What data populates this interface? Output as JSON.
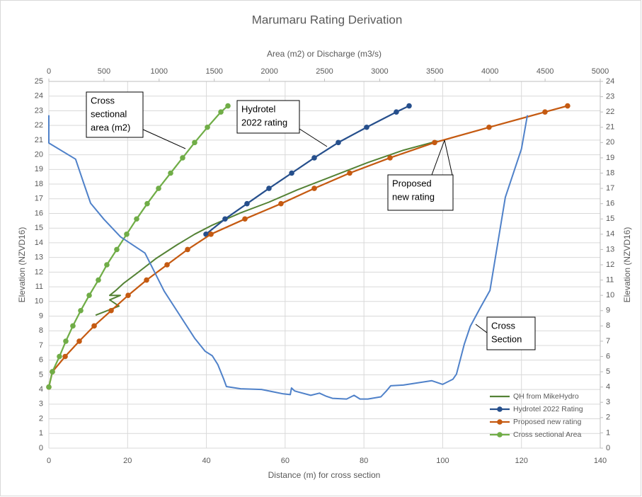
{
  "chart_data": {
    "type": "line",
    "title": "Marumaru Rating Derivation",
    "x_label": "Distance (m) for cross section",
    "x2_label": "Area (m2) or Discharge (m3/s)",
    "y_label": "Elevation (NZVD16)",
    "y2_label": "Elevation (NZVD16)",
    "xlim": [
      0,
      140
    ],
    "xticks": [
      0,
      20,
      40,
      60,
      80,
      100,
      120,
      140
    ],
    "x2lim": [
      0,
      5000
    ],
    "x2ticks": [
      0,
      500,
      1000,
      1500,
      2000,
      2500,
      3000,
      3500,
      4000,
      4500,
      5000
    ],
    "ylim": [
      0,
      25
    ],
    "yticks": [
      0,
      1,
      2,
      3,
      4,
      5,
      6,
      7,
      8,
      9,
      10,
      11,
      12,
      13,
      14,
      15,
      16,
      17,
      18,
      19,
      20,
      21,
      22,
      23,
      24,
      25
    ],
    "y2lim": [
      0,
      24
    ],
    "y2ticks": [
      0,
      1,
      2,
      3,
      4,
      5,
      6,
      7,
      8,
      9,
      10,
      11,
      12,
      13,
      14,
      15,
      16,
      17,
      18,
      19,
      20,
      21,
      22,
      23,
      24
    ],
    "grid": true,
    "legend": "lower right",
    "series": [
      {
        "name": "QH from MikeHydro",
        "color": "#548235",
        "axis": "y2",
        "xaxis": "x2",
        "markers": false,
        "x": [
          424,
          636,
          552,
          648,
          552,
          604,
          680,
          809,
          969,
          1162,
          1322,
          1483,
          1740,
          1996,
          2253,
          2574,
          2895,
          3216,
          3524
        ],
        "values": [
          8.7,
          9.3,
          9.7,
          10.0,
          10.0,
          10.3,
          10.8,
          11.5,
          12.4,
          13.3,
          14.0,
          14.6,
          15.4,
          16.1,
          16.9,
          17.8,
          18.7,
          19.5,
          20.1
        ]
      },
      {
        "name": "Hydrotel 2022 Rating",
        "color": "#264f8c",
        "axis": "y2",
        "xaxis": "x2",
        "markers": true,
        "x": [
          1425,
          1598,
          1797,
          1996,
          2202,
          2407,
          2625,
          2882,
          3151,
          3267
        ],
        "values": [
          14,
          15,
          16,
          17,
          18,
          19,
          20,
          21,
          22,
          22.4
        ]
      },
      {
        "name": "Proposed new rating",
        "color": "#c55a11",
        "axis": "y2",
        "xaxis": "x2",
        "markers": true,
        "x": [
          0,
          32,
          148,
          276,
          411,
          565,
          719,
          886,
          1072,
          1258,
          1470,
          1778,
          2105,
          2407,
          2728,
          3094,
          3498,
          3992,
          4499,
          4704
        ],
        "values": [
          4,
          5,
          6,
          7,
          8,
          9,
          10,
          11,
          12,
          13,
          14,
          15,
          16,
          17,
          18,
          19,
          20,
          21,
          22,
          22.4
        ]
      },
      {
        "name": "Cross sectional Area",
        "color": "#70ad47",
        "axis": "y2",
        "xaxis": "x2",
        "markers": true,
        "x": [
          0,
          32,
          96,
          154,
          218,
          289,
          366,
          449,
          526,
          616,
          706,
          796,
          892,
          995,
          1104,
          1213,
          1322,
          1438,
          1560,
          1624
        ],
        "values": [
          4,
          5,
          6,
          7,
          8,
          9,
          10,
          11,
          12,
          13,
          14,
          15,
          16,
          17,
          18,
          19,
          20,
          21,
          22,
          22.4
        ]
      },
      {
        "name": "Cross Section",
        "color": "#4f81c9",
        "axis": "y",
        "xaxis": "x",
        "markers": false,
        "in_legend": false,
        "x": [
          0,
          0,
          6.8,
          8.8,
          10.6,
          14,
          18.2,
          24.4,
          29.3,
          33.4,
          37,
          39.7,
          41.5,
          42.9,
          44.4,
          45.1,
          48.7,
          54,
          59.5,
          61.3,
          61.6,
          62.4,
          63,
          66.5,
          68.7,
          70.3,
          72,
          75.6,
          77.5,
          79,
          81,
          84.3,
          85.7,
          86.8,
          90,
          97.2,
          100,
          102.6,
          103.5,
          105.5,
          107,
          109.5,
          112,
          115.9,
          120,
          121.5
        ],
        "values": [
          22.7,
          20.8,
          19.7,
          18.1,
          16.7,
          15.6,
          14.4,
          13.3,
          10.7,
          9.0,
          7.5,
          6.6,
          6.3,
          5.7,
          4.7,
          4.2,
          4.05,
          4.0,
          3.7,
          3.65,
          4.1,
          3.9,
          3.85,
          3.6,
          3.75,
          3.55,
          3.4,
          3.35,
          3.6,
          3.35,
          3.35,
          3.5,
          3.9,
          4.25,
          4.3,
          4.6,
          4.35,
          4.7,
          5.05,
          7.1,
          8.3,
          9.55,
          10.75,
          17.1,
          20.4,
          22.7
        ]
      }
    ],
    "annotations": [
      {
        "lines": [
          "Cross",
          "sectional",
          "area (m2)"
        ]
      },
      {
        "lines": [
          "Hydrotel",
          "2022 rating"
        ]
      },
      {
        "lines": [
          "Proposed",
          "new rating"
        ]
      },
      {
        "lines": [
          "Cross",
          "Section"
        ]
      }
    ]
  }
}
